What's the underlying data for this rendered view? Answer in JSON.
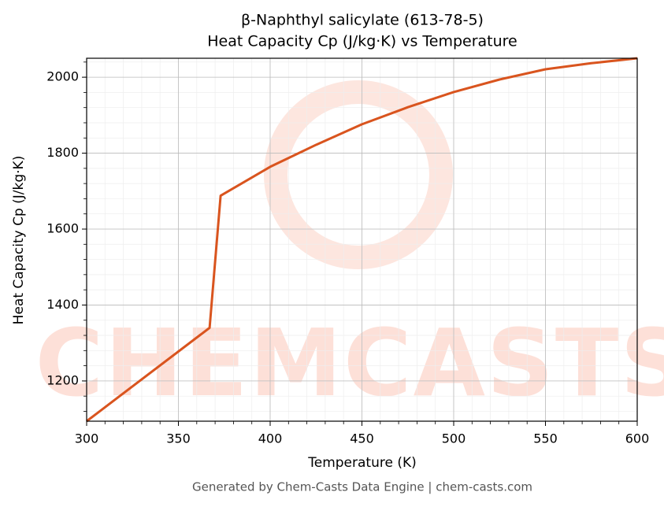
{
  "chart_data": {
    "type": "line",
    "title": "β-Naphthyl salicylate (613-78-5)",
    "subtitle": "Heat Capacity Cp (J/kg·K) vs Temperature",
    "x_label": "Temperature (K)",
    "y_label": "Heat Capacity Cp (J/kg·K)",
    "footer": "Generated by Chem-Casts Data Engine | chem-casts.com",
    "watermark": "CHEMCASTS",
    "x": [
      300,
      367,
      373,
      400,
      425,
      450,
      475,
      500,
      525,
      550,
      575,
      600
    ],
    "series": [
      {
        "name": "Cp",
        "color": "#d9541e",
        "values": [
          1094,
          1340,
          1688,
          1764,
          1822,
          1876,
          1921,
          1961,
          1994,
          2021,
          2037,
          2050
        ]
      }
    ],
    "xlim": [
      300,
      600
    ],
    "ylim": [
      1094,
      2050
    ],
    "xticks": [
      300,
      350,
      400,
      450,
      500,
      550,
      600
    ],
    "yticks": [
      1200,
      1400,
      1600,
      1800,
      2000
    ],
    "grid": true,
    "minor_divisions": 5
  }
}
